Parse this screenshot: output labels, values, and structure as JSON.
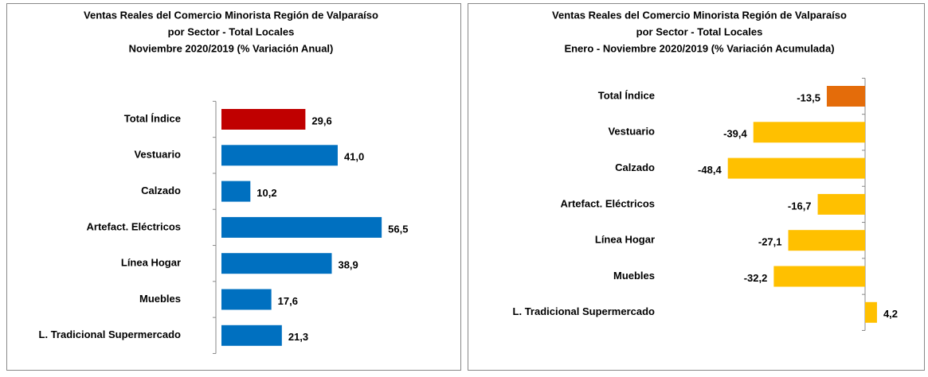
{
  "chart_data": [
    {
      "type": "bar",
      "orientation": "horizontal",
      "title": [
        "Ventas Reales del Comercio Minorista Región de Valparaíso",
        "por Sector - Total Locales",
        "Noviembre 2020/2019 (% Variación Anual)"
      ],
      "categories": [
        "Total Índice",
        "Vestuario",
        "Calzado",
        "Artefact. Eléctricos",
        "Línea Hogar",
        "Muebles",
        "L. Tradicional Supermercado"
      ],
      "values": [
        29.6,
        41.0,
        10.2,
        56.5,
        38.9,
        17.6,
        21.3
      ],
      "value_labels": [
        "29,6",
        "41,0",
        "10,2",
        "56,5",
        "38,9",
        "17,6",
        "21,3"
      ],
      "colors": [
        "#c00000",
        "#0070c0",
        "#0070c0",
        "#0070c0",
        "#0070c0",
        "#0070c0",
        "#0070c0"
      ]
    },
    {
      "type": "bar",
      "orientation": "horizontal",
      "title": [
        "Ventas Reales del Comercio Minorista Región de Valparaíso",
        "por Sector  - Total Locales",
        "Enero - Noviembre  2020/2019 (% Variación Acumulada)"
      ],
      "categories": [
        "Total Índice",
        "Vestuario",
        "Calzado",
        "Artefact. Eléctricos",
        "Línea Hogar",
        "Muebles",
        "L. Tradicional Supermercado"
      ],
      "values": [
        -13.5,
        -39.4,
        -48.4,
        -16.7,
        -27.1,
        -32.2,
        4.2
      ],
      "value_labels": [
        "-13,5",
        "-39,4",
        "-48,4",
        "-16,7",
        "-27,1",
        "-32,2",
        "4,2"
      ],
      "colors": [
        "#e46c0a",
        "#ffc000",
        "#ffc000",
        "#ffc000",
        "#ffc000",
        "#ffc000",
        "#ffc000"
      ]
    }
  ]
}
